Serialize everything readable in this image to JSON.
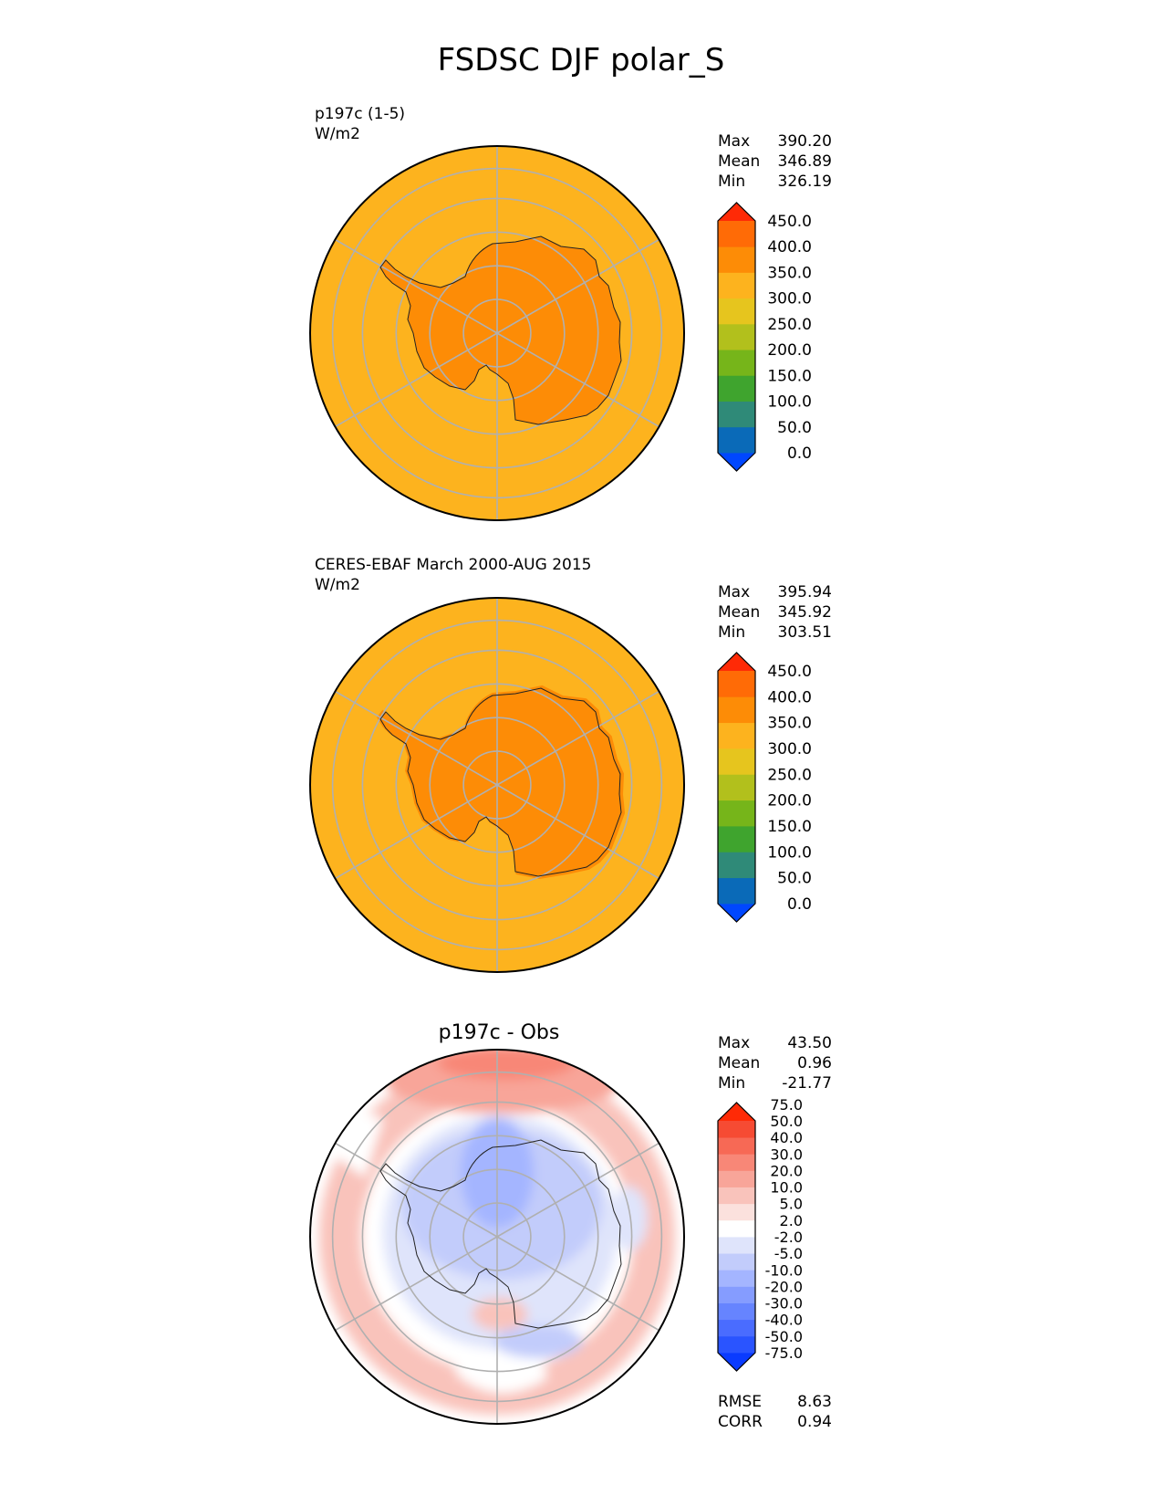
{
  "figure": {
    "title": "FSDSC DJF polar_S"
  },
  "chart_data": [
    {
      "type": "heatmap",
      "projection": "south-polar-stereographic",
      "title": "p197c (1-5)",
      "units": "W/m2",
      "stats": {
        "max_label": "Max",
        "max": "390.20",
        "mean_label": "Mean",
        "mean": "346.89",
        "min_label": "Min",
        "min": "326.19"
      },
      "ocean_value": 325,
      "continent_value": 360,
      "colorbar": {
        "levels": [
          "0.0",
          "50.0",
          "100.0",
          "150.0",
          "200.0",
          "250.0",
          "300.0",
          "350.0",
          "400.0",
          "450.0"
        ],
        "colors": [
          "#0047ff",
          "#0a6ab8",
          "#2f8a78",
          "#3fa42e",
          "#76b51a",
          "#b2c01c",
          "#e6c51e",
          "#fdb31e",
          "#fd8c06",
          "#ff6b06",
          "#ff2a06"
        ],
        "extend": "both"
      }
    },
    {
      "type": "heatmap",
      "projection": "south-polar-stereographic",
      "title": "CERES-EBAF March 2000-AUG 2015",
      "units": "W/m2",
      "stats": {
        "max_label": "Max",
        "max": "395.94",
        "mean_label": "Mean",
        "mean": "345.92",
        "min_label": "Min",
        "min": "303.51"
      },
      "ocean_value": 325,
      "continent_value": 360,
      "colorbar": {
        "levels": [
          "0.0",
          "50.0",
          "100.0",
          "150.0",
          "200.0",
          "250.0",
          "300.0",
          "350.0",
          "400.0",
          "450.0"
        ],
        "colors": [
          "#0047ff",
          "#0a6ab8",
          "#2f8a78",
          "#3fa42e",
          "#76b51a",
          "#b2c01c",
          "#e6c51e",
          "#fdb31e",
          "#fd8c06",
          "#ff6b06",
          "#ff2a06"
        ],
        "extend": "both"
      }
    },
    {
      "type": "heatmap",
      "projection": "south-polar-stereographic",
      "title": "p197c - Obs",
      "units": "",
      "stats": {
        "max_label": "Max",
        "max": "43.50",
        "mean_label": "Mean",
        "mean": "0.96",
        "min_label": "Min",
        "min": "-21.77"
      },
      "error_stats": {
        "rmse_label": "RMSE",
        "rmse": "8.63",
        "corr_label": "CORR",
        "corr": "0.94"
      },
      "colorbar": {
        "levels": [
          "-75.0",
          "-50.0",
          "-40.0",
          "-30.0",
          "-20.0",
          "-10.0",
          "-5.0",
          "-2.0",
          "2.0",
          "5.0",
          "10.0",
          "20.0",
          "30.0",
          "40.0",
          "50.0",
          "75.0"
        ],
        "colors": [
          "#0a3bff",
          "#2a54ff",
          "#4a6cff",
          "#6684ff",
          "#859cff",
          "#a4b5ff",
          "#c2ccfb",
          "#dfe4fb",
          "#ffffff",
          "#fbe1dd",
          "#f9c3bb",
          "#f8a599",
          "#f88777",
          "#f76955",
          "#f64b33",
          "#ff2a06"
        ],
        "extend": "both"
      }
    }
  ]
}
